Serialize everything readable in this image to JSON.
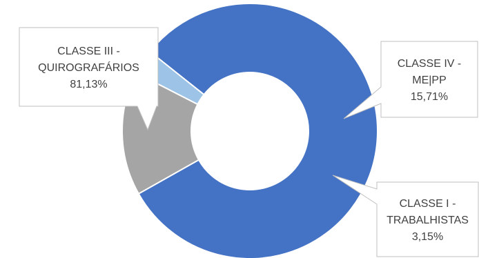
{
  "chart_data": {
    "type": "pie",
    "variant": "doughnut",
    "title": "",
    "slices": [
      {
        "label": [
          "CLASSE III -",
          "QUIROGRAFÁRIOS"
        ],
        "value": 81.13,
        "value_text": "81,13%",
        "color": "#4472C4"
      },
      {
        "label": [
          "CLASSE IV -",
          "ME|PP"
        ],
        "value": 15.71,
        "value_text": "15,71%",
        "color": "#A5A5A5"
      },
      {
        "label": [
          "CLASSE I -",
          "TRABALHISTAS"
        ],
        "value": 3.15,
        "value_text": "3,15%",
        "color": "#9DC3E6"
      }
    ],
    "legend": "none",
    "labels": "callouts"
  }
}
